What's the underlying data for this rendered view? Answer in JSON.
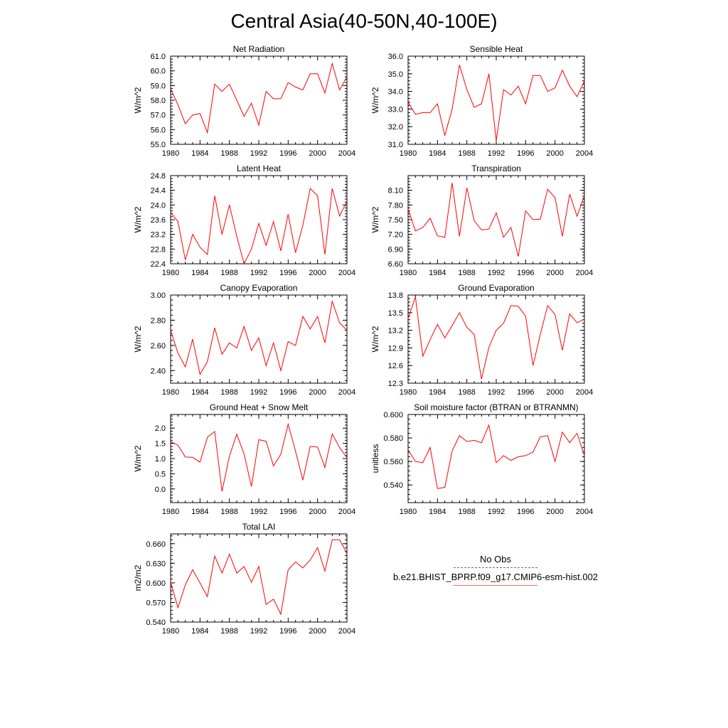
{
  "title": "Central Asia(40-50N,40-100E)",
  "legend": {
    "title": "No Obs",
    "case": "b.e21.BHIST_BPRP.f09_g17.CMIP6-esm-hist.002",
    "line_color": "#ff0000"
  },
  "chart_data": [
    {
      "type": "line",
      "title": "Net Radiation",
      "ylabel": "W/m^2",
      "xlim": [
        1980,
        2004
      ],
      "ylim": [
        55.0,
        61.0
      ],
      "xticks": [
        "1980",
        "1984",
        "1988",
        "1992",
        "1996",
        "2000",
        "2004"
      ],
      "yticks": [
        "55.0",
        "56.0",
        "57.0",
        "58.0",
        "59.0",
        "60.0",
        "61.0"
      ],
      "series": [
        {
          "x": [
            1980,
            1981,
            1982,
            1983,
            1984,
            1985,
            1986,
            1987,
            1988,
            1989,
            1990,
            1991,
            1992,
            1993,
            1994,
            1995,
            1996,
            1997,
            1998,
            1999,
            2000,
            2001,
            2002,
            2003,
            2004
          ],
          "values": [
            58.8,
            57.7,
            56.4,
            57.0,
            57.1,
            55.8,
            59.1,
            58.6,
            59.1,
            58.0,
            56.9,
            57.8,
            56.3,
            58.6,
            58.1,
            58.1,
            59.2,
            58.9,
            58.7,
            59.8,
            59.8,
            58.5,
            60.5,
            58.7,
            59.6
          ]
        }
      ]
    },
    {
      "type": "line",
      "title": "Sensible Heat",
      "ylabel": "W/m^2",
      "xlim": [
        1980,
        2004
      ],
      "ylim": [
        31.0,
        36.0
      ],
      "xticks": [
        "1980",
        "1984",
        "1988",
        "1992",
        "1996",
        "2000",
        "2004"
      ],
      "yticks": [
        "31.0",
        "32.0",
        "33.0",
        "34.0",
        "35.0",
        "36.0"
      ],
      "series": [
        {
          "x": [
            1980,
            1981,
            1982,
            1983,
            1984,
            1985,
            1986,
            1987,
            1988,
            1989,
            1990,
            1991,
            1992,
            1993,
            1994,
            1995,
            1996,
            1997,
            1998,
            1999,
            2000,
            2001,
            2002,
            2003,
            2004
          ],
          "values": [
            33.4,
            32.7,
            32.8,
            32.8,
            33.3,
            31.5,
            33.0,
            35.5,
            34.1,
            33.1,
            33.3,
            35.0,
            31.2,
            34.1,
            33.8,
            34.3,
            33.3,
            34.9,
            34.9,
            34.0,
            34.2,
            35.2,
            34.3,
            33.7,
            34.6
          ]
        }
      ]
    },
    {
      "type": "line",
      "title": "Latent Heat",
      "ylabel": "W/m^2",
      "xlim": [
        1980,
        2004
      ],
      "ylim": [
        22.4,
        24.8
      ],
      "xticks": [
        "1980",
        "1984",
        "1988",
        "1992",
        "1996",
        "2000",
        "2004"
      ],
      "yticks": [
        "22.4",
        "22.8",
        "23.2",
        "23.6",
        "24.0",
        "24.4",
        "24.8"
      ],
      "series": [
        {
          "x": [
            1980,
            1981,
            1982,
            1983,
            1984,
            1985,
            1986,
            1987,
            1988,
            1989,
            1990,
            1991,
            1992,
            1993,
            1994,
            1995,
            1996,
            1997,
            1998,
            1999,
            2000,
            2001,
            2002,
            2003,
            2004
          ],
          "values": [
            23.8,
            23.55,
            22.5,
            23.2,
            22.85,
            22.65,
            24.25,
            23.2,
            24.0,
            23.15,
            22.4,
            22.8,
            23.5,
            22.9,
            23.55,
            22.75,
            23.75,
            22.7,
            23.45,
            24.45,
            24.25,
            22.65,
            24.45,
            23.7,
            24.1
          ]
        }
      ]
    },
    {
      "type": "line",
      "title": "Transpiration",
      "ylabel": "W/m^2",
      "xlim": [
        1980,
        2004
      ],
      "ylim": [
        6.6,
        8.4
      ],
      "xticks": [
        "1980",
        "1984",
        "1988",
        "1992",
        "1996",
        "2000",
        "2004"
      ],
      "yticks": [
        "6.60",
        "6.90",
        "7.20",
        "7.50",
        "7.80",
        "8.10"
      ],
      "series": [
        {
          "x": [
            1980,
            1981,
            1982,
            1983,
            1984,
            1985,
            1986,
            1987,
            1988,
            1989,
            1990,
            1991,
            1992,
            1993,
            1994,
            1995,
            1996,
            1997,
            1998,
            1999,
            2000,
            2001,
            2002,
            2003,
            2004
          ],
          "values": [
            7.72,
            7.27,
            7.34,
            7.53,
            7.17,
            7.14,
            8.25,
            7.16,
            8.15,
            7.48,
            7.29,
            7.31,
            7.64,
            7.14,
            7.34,
            6.75,
            7.68,
            7.5,
            7.51,
            8.12,
            7.95,
            7.16,
            8.02,
            7.57,
            7.99
          ]
        }
      ]
    },
    {
      "type": "line",
      "title": "Canopy Evaporation",
      "ylabel": "W/m^2",
      "xlim": [
        1980,
        2004
      ],
      "ylim": [
        2.3,
        3.0
      ],
      "xticks": [
        "1980",
        "1984",
        "1988",
        "1992",
        "1996",
        "2000",
        "2004"
      ],
      "yticks": [
        "2.40",
        "2.60",
        "2.80",
        "3.00"
      ],
      "series": [
        {
          "x": [
            1980,
            1981,
            1982,
            1983,
            1984,
            1985,
            1986,
            1987,
            1988,
            1989,
            1990,
            1991,
            1992,
            1993,
            1994,
            1995,
            1996,
            1997,
            1998,
            1999,
            2000,
            2001,
            2002,
            2003,
            2004
          ],
          "values": [
            2.72,
            2.54,
            2.43,
            2.65,
            2.37,
            2.47,
            2.74,
            2.53,
            2.62,
            2.58,
            2.75,
            2.56,
            2.66,
            2.44,
            2.62,
            2.4,
            2.63,
            2.6,
            2.83,
            2.73,
            2.83,
            2.62,
            2.95,
            2.78,
            2.72
          ]
        }
      ]
    },
    {
      "type": "line",
      "title": "Ground Evaporation",
      "ylabel": "W/m^2",
      "xlim": [
        1980,
        2004
      ],
      "ylim": [
        12.3,
        13.8
      ],
      "xticks": [
        "1980",
        "1984",
        "1988",
        "1992",
        "1996",
        "2000",
        "2004"
      ],
      "yticks": [
        "12.3",
        "12.6",
        "12.9",
        "13.2",
        "13.5",
        "13.8"
      ],
      "series": [
        {
          "x": [
            1980,
            1981,
            1982,
            1983,
            1984,
            1985,
            1986,
            1987,
            1988,
            1989,
            1990,
            1991,
            1992,
            1993,
            1994,
            1995,
            1996,
            1997,
            1998,
            1999,
            2000,
            2001,
            2002,
            2003,
            2004
          ],
          "values": [
            13.4,
            13.77,
            12.76,
            13.04,
            13.3,
            13.07,
            13.28,
            13.5,
            13.25,
            13.13,
            12.37,
            12.91,
            13.2,
            13.32,
            13.62,
            13.61,
            13.44,
            12.6,
            13.13,
            13.62,
            13.47,
            12.86,
            13.48,
            13.33,
            13.39
          ]
        }
      ]
    },
    {
      "type": "line",
      "title": "Ground Heat + Snow Melt",
      "ylabel": "W/m^2",
      "xlim": [
        1980,
        2004
      ],
      "ylim": [
        -0.45,
        2.45
      ],
      "xticks": [
        "1980",
        "1984",
        "1988",
        "1992",
        "1996",
        "2000",
        "2004"
      ],
      "yticks": [
        "0.0",
        "0.5",
        "1.0",
        "1.5",
        "2.0"
      ],
      "series": [
        {
          "x": [
            1980,
            1981,
            1982,
            1983,
            1984,
            1985,
            1986,
            1987,
            1988,
            1989,
            1990,
            1991,
            1992,
            1993,
            1994,
            1995,
            1996,
            1997,
            1998,
            1999,
            2000,
            2001,
            2002,
            2003,
            2004
          ],
          "values": [
            1.56,
            1.44,
            1.05,
            1.04,
            0.88,
            1.7,
            1.89,
            -0.08,
            1.08,
            1.8,
            1.15,
            0.08,
            1.62,
            1.57,
            0.76,
            1.14,
            2.13,
            1.24,
            0.29,
            1.4,
            1.38,
            0.71,
            1.81,
            1.36,
            1.03
          ]
        }
      ]
    },
    {
      "type": "line",
      "title": "Soil moisture factor (BTRAN or BTRANMN)",
      "ylabel": "unitless",
      "xlim": [
        1980,
        2004
      ],
      "ylim": [
        0.525,
        0.6
      ],
      "xticks": [
        "1980",
        "1984",
        "1988",
        "1992",
        "1996",
        "2000",
        "2004"
      ],
      "yticks": [
        "0.540",
        "0.560",
        "0.580",
        "0.600"
      ],
      "series": [
        {
          "x": [
            1980,
            1981,
            1982,
            1983,
            1984,
            1985,
            1986,
            1987,
            1988,
            1989,
            1990,
            1991,
            1992,
            1993,
            1994,
            1995,
            1996,
            1997,
            1998,
            1999,
            2000,
            2001,
            2002,
            2003,
            2004
          ],
          "values": [
            0.57,
            0.56,
            0.559,
            0.572,
            0.537,
            0.538,
            0.569,
            0.582,
            0.577,
            0.578,
            0.576,
            0.591,
            0.559,
            0.565,
            0.561,
            0.564,
            0.565,
            0.568,
            0.581,
            0.582,
            0.56,
            0.585,
            0.576,
            0.584,
            0.565
          ]
        }
      ]
    },
    {
      "type": "line",
      "title": "Total LAI",
      "ylabel": "m2/m2",
      "xlim": [
        1980,
        2004
      ],
      "ylim": [
        0.54,
        0.675
      ],
      "xticks": [
        "1980",
        "1984",
        "1988",
        "1992",
        "1996",
        "2000",
        "2004"
      ],
      "yticks": [
        "0.540",
        "0.570",
        "0.600",
        "0.630",
        "0.660"
      ],
      "series": [
        {
          "x": [
            1980,
            1981,
            1982,
            1983,
            1984,
            1985,
            1986,
            1987,
            1988,
            1989,
            1990,
            1991,
            1992,
            1993,
            1994,
            1995,
            1996,
            1997,
            1998,
            1999,
            2000,
            2001,
            2002,
            2003,
            2004
          ],
          "values": [
            0.601,
            0.562,
            0.597,
            0.62,
            0.6,
            0.579,
            0.641,
            0.615,
            0.644,
            0.615,
            0.625,
            0.601,
            0.625,
            0.567,
            0.575,
            0.552,
            0.62,
            0.632,
            0.623,
            0.635,
            0.654,
            0.618,
            0.666,
            0.666,
            0.645
          ]
        }
      ]
    }
  ]
}
